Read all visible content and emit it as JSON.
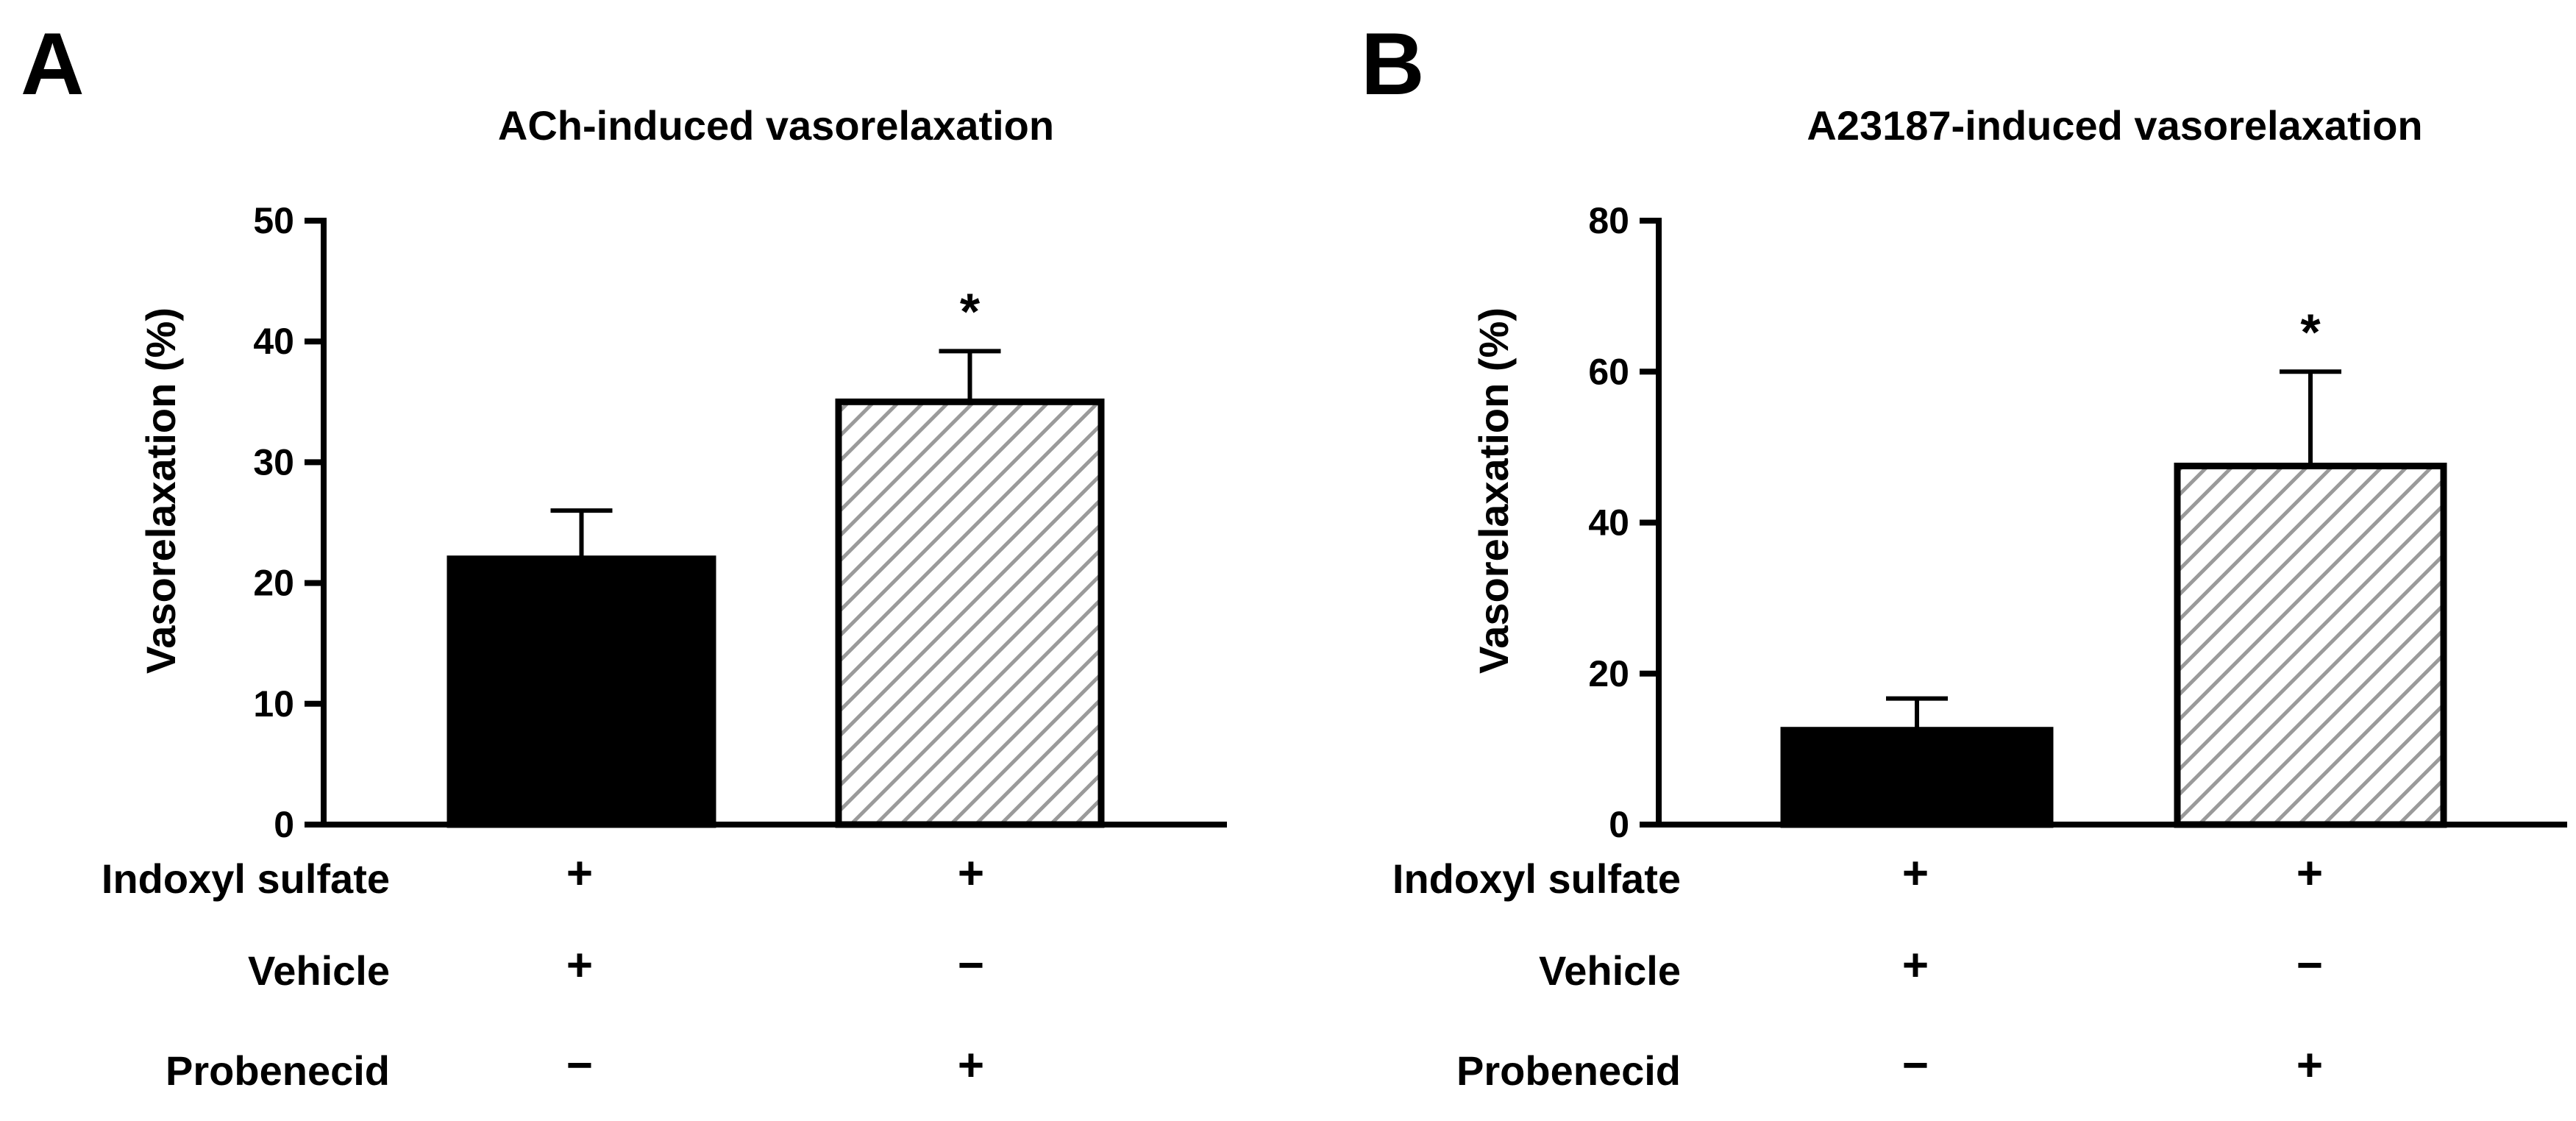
{
  "chart_data": [
    {
      "panel_label": "A",
      "type": "bar",
      "title": "ACh-induced vasorelaxation",
      "xlabel": "",
      "ylabel": "Vasorelaxation (%)",
      "ylim": [
        0,
        50
      ],
      "yticks": [
        0,
        10,
        20,
        30,
        40,
        50
      ],
      "ytick_labels": [
        "0",
        "10",
        "20",
        "30",
        "40",
        "50"
      ],
      "categories": [
        "Indoxyl sulfate + Vehicle",
        "Indoxyl sulfate + Probenecid"
      ],
      "values": [
        22,
        35
      ],
      "errors": [
        4,
        4.2
      ],
      "significance": [
        "",
        "*"
      ],
      "bar_fill": [
        "solid",
        "hatched"
      ],
      "conditions": [
        {
          "name": "Indoxyl sulfate",
          "symbols": [
            "+",
            "+"
          ]
        },
        {
          "name": "Vehicle",
          "symbols": [
            "+",
            "−"
          ]
        },
        {
          "name": "Probenecid",
          "symbols": [
            "−",
            "+"
          ]
        }
      ]
    },
    {
      "panel_label": "B",
      "type": "bar",
      "title": "A23187-induced vasorelaxation",
      "xlabel": "",
      "ylabel": "Vasorelaxation (%)",
      "ylim": [
        0,
        80
      ],
      "yticks": [
        0,
        20,
        40,
        60,
        80
      ],
      "ytick_labels": [
        "0",
        "20",
        "40",
        "60",
        "80"
      ],
      "categories": [
        "Indoxyl sulfate + Vehicle",
        "Indoxyl sulfate + Probenecid"
      ],
      "values": [
        12.5,
        47.5
      ],
      "errors": [
        4.2,
        12.5
      ],
      "significance": [
        "",
        "*"
      ],
      "bar_fill": [
        "solid",
        "hatched"
      ],
      "conditions": [
        {
          "name": "Indoxyl sulfate",
          "symbols": [
            "+",
            "+"
          ]
        },
        {
          "name": "Vehicle",
          "symbols": [
            "+",
            "−"
          ]
        },
        {
          "name": "Probenecid",
          "symbols": [
            "−",
            "+"
          ]
        }
      ]
    }
  ],
  "colors": {
    "bar_solid": "#000000",
    "hatch_background": "#ffffff",
    "hatch_stroke": "#9a9a9a",
    "axis": "#000000"
  }
}
